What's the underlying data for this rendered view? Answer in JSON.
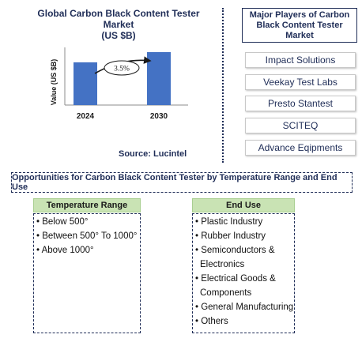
{
  "chart": {
    "title_line1": "Global Carbon Black Content Tester Market",
    "title_line2": "(US $B)",
    "source": "Source: Lucintel",
    "growth_label": "3.5%",
    "colors": {
      "bar": "#4472c4",
      "title": "#1f2d57"
    }
  },
  "chart_data": {
    "type": "bar",
    "categories": [
      "2024",
      "2030"
    ],
    "values": [
      0.63,
      0.78
    ],
    "ylabel": "Value (US $B)",
    "xlabel": "",
    "annotation": "3.5%"
  },
  "players": {
    "header": "Major Players of Carbon Black Content Tester Market",
    "items": [
      "Impact Solutions",
      "Veekay Test Labs",
      "Presto Stantest",
      "SCITEQ",
      "Advance Eqipments"
    ]
  },
  "opportunities": {
    "header": "Opportunities for Carbon Black Content Tester by Temperature Range and End Use",
    "temperature": {
      "title": "Temperature Range",
      "items": [
        "• Below 500°",
        "• Between 500° To 1000°",
        "• Above 1000°"
      ]
    },
    "enduse": {
      "title": "End Use",
      "items": [
        "• Plastic Industry",
        "• Rubber Industry",
        "• Semiconductors &",
        "Electronics",
        "• Electrical Goods &",
        "Components",
        "• General Manufacturing",
        "• Others"
      ]
    }
  }
}
